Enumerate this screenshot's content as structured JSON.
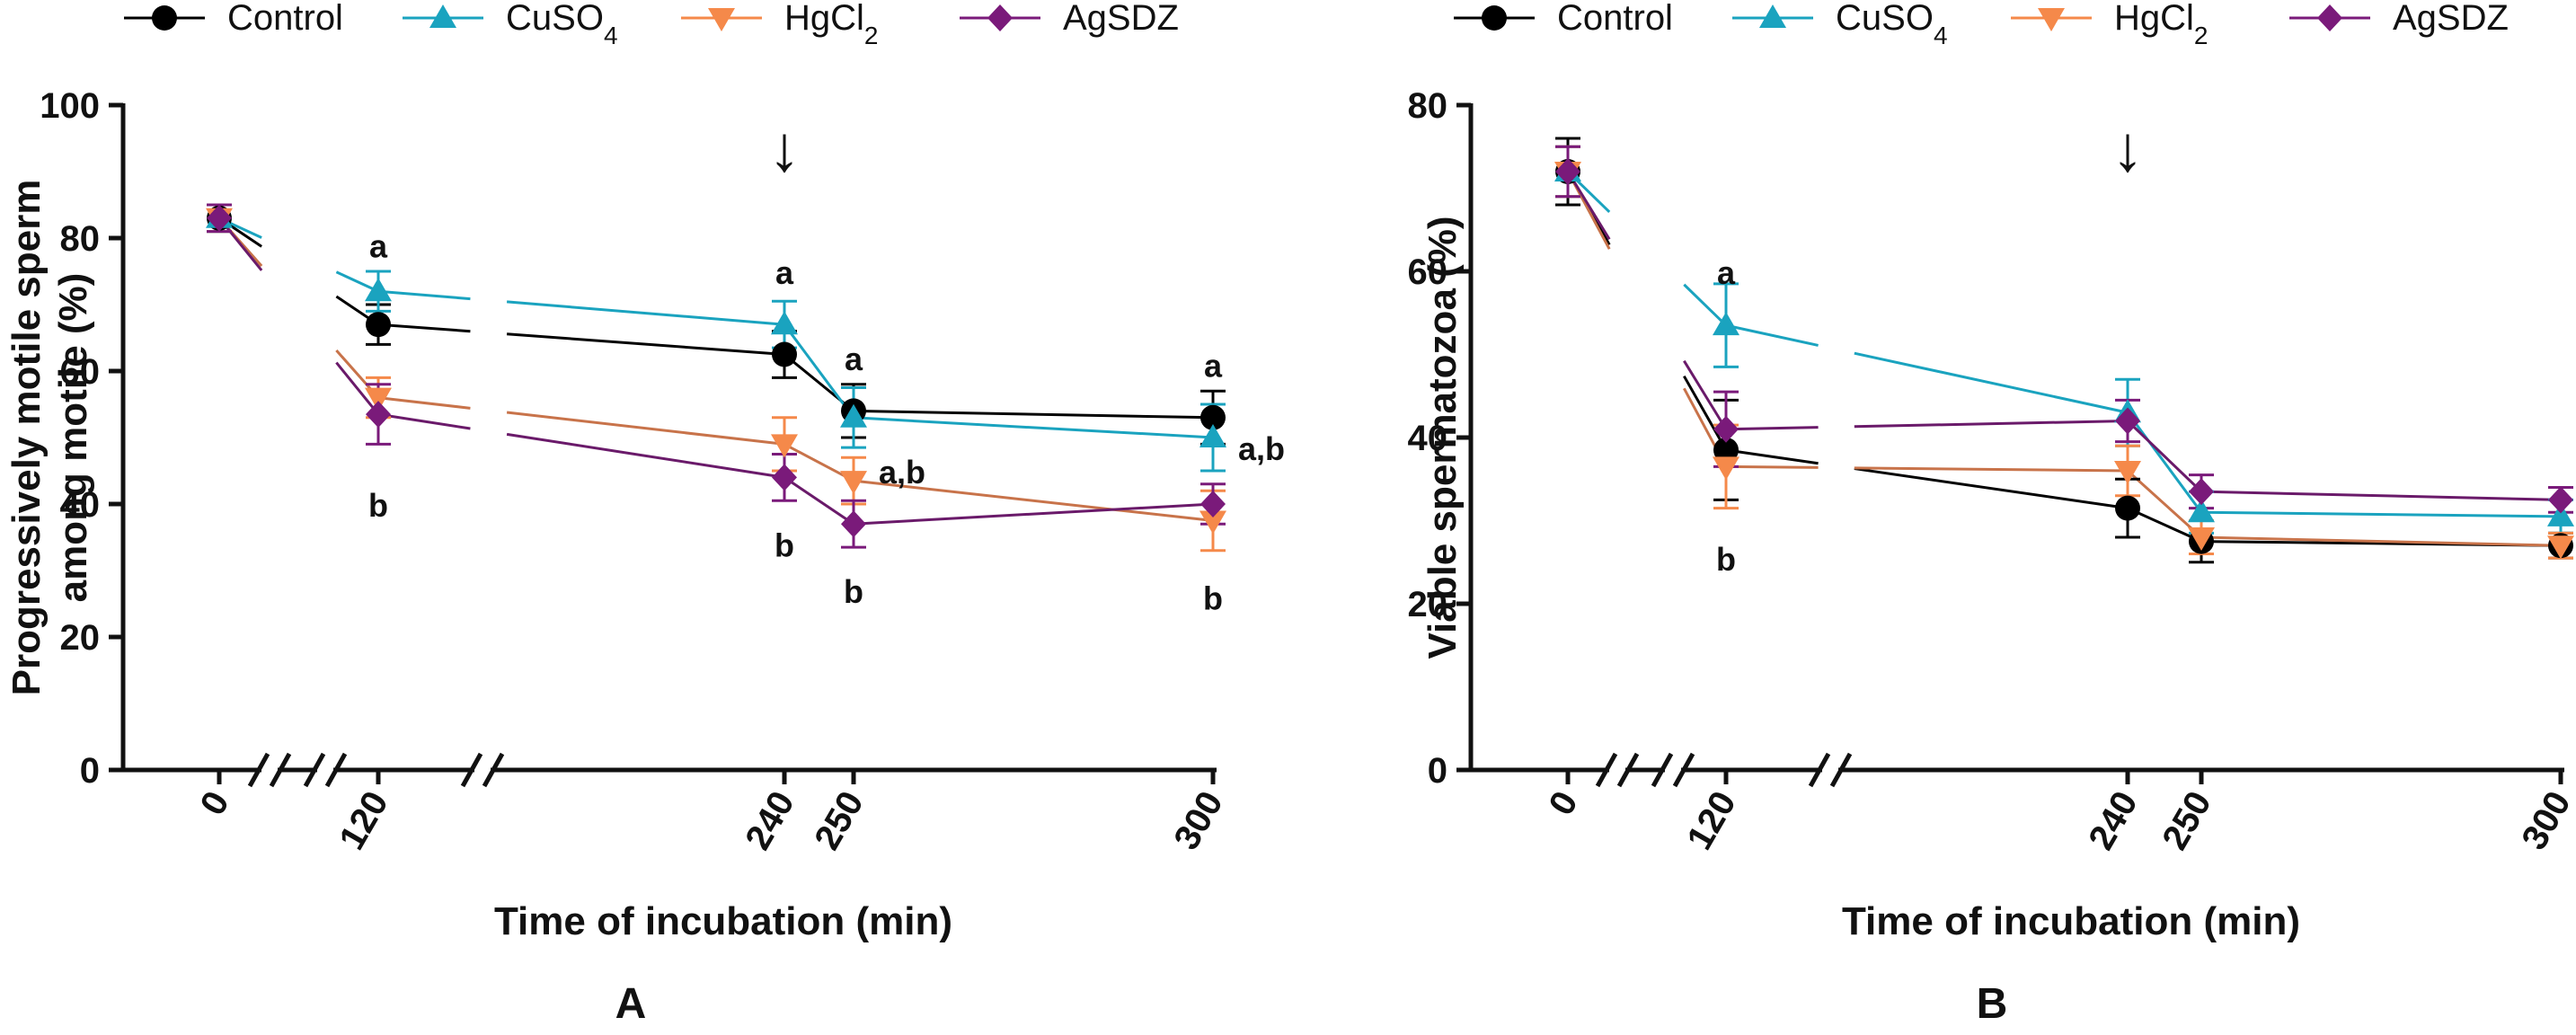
{
  "legend": {
    "items": [
      {
        "name": "Control",
        "label": "Control",
        "sub": "",
        "tail": "",
        "color": "#000000",
        "marker": "circle"
      },
      {
        "name": "CuSO4",
        "label": "CuSO",
        "sub": "4",
        "tail": "",
        "color": "#1aa3bf",
        "marker": "triangle-up"
      },
      {
        "name": "HgCl2",
        "label": "HgCl",
        "sub": "2",
        "tail": "",
        "color": "#f5894a",
        "marker": "triangle-down"
      },
      {
        "name": "AgSDZ",
        "label": "AgSDZ",
        "sub": "",
        "tail": "",
        "color": "#7a1a7a",
        "marker": "diamond"
      }
    ]
  },
  "line_colors": {
    "Control": "#000000",
    "CuSO4": "#1aa3bf",
    "HgCl2": "#c8734a",
    "AgSDZ": "#6a1a6a"
  },
  "chart_data": [
    {
      "type": "line",
      "panel_label": "A",
      "xlabel": "Time of incubation (min)",
      "ylabel_lines": [
        "Progressively motile sperm",
        "among motile (%)"
      ],
      "x": [
        0,
        120,
        240,
        250,
        300
      ],
      "xticks": [
        "0",
        "120",
        "240",
        "250",
        "300"
      ],
      "yticks": [
        "0",
        "20",
        "40",
        "60",
        "80",
        "100"
      ],
      "ylim": [
        0,
        100
      ],
      "arrow_x": 240,
      "arrow_symbol": "↓",
      "series": [
        {
          "name": "Control",
          "values": [
            83,
            67,
            62.5,
            54,
            53
          ],
          "errors": [
            2,
            3,
            3.5,
            4,
            4
          ]
        },
        {
          "name": "CuSO4",
          "values": [
            83,
            72,
            67,
            53,
            50
          ],
          "errors": [
            2,
            3,
            3.5,
            4.5,
            5
          ]
        },
        {
          "name": "HgCl2",
          "values": [
            83,
            56,
            49,
            43.5,
            37.5
          ],
          "errors": [
            2,
            3,
            4,
            3.5,
            4.5
          ]
        },
        {
          "name": "AgSDZ",
          "values": [
            83,
            53.5,
            44,
            37,
            40
          ],
          "errors": [
            2,
            4.5,
            3.5,
            3.5,
            3
          ]
        }
      ],
      "annotations": [
        {
          "text": "a",
          "x": 120,
          "y": 79
        },
        {
          "text": "b",
          "x": 120,
          "y": 40
        },
        {
          "text": "a",
          "x": 240,
          "y": 75
        },
        {
          "text": "b",
          "x": 240,
          "y": 34
        },
        {
          "text": "a",
          "x": 250,
          "y": 62
        },
        {
          "text": "a,b",
          "x": 250,
          "y": 45,
          "side": "right"
        },
        {
          "text": "b",
          "x": 250,
          "y": 27
        },
        {
          "text": "a",
          "x": 300,
          "y": 61
        },
        {
          "text": "a,b",
          "x": 300,
          "y": 48.5,
          "side": "right"
        },
        {
          "text": "b",
          "x": 300,
          "y": 26
        }
      ]
    },
    {
      "type": "line",
      "panel_label": "B",
      "xlabel": "Time of incubation (min)",
      "ylabel_lines": [
        "Viable spermatozoa (%)"
      ],
      "x": [
        0,
        120,
        240,
        250,
        300
      ],
      "xticks": [
        "0",
        "120",
        "240",
        "250",
        "300"
      ],
      "yticks": [
        "0",
        "20",
        "40",
        "60",
        "80"
      ],
      "ylim": [
        0,
        80
      ],
      "arrow_x": 240,
      "arrow_symbol": "↓",
      "series": [
        {
          "name": "Control",
          "values": [
            72,
            38.5,
            31.5,
            27.5,
            27
          ],
          "errors": [
            4,
            6,
            3.5,
            2.5,
            1.5
          ]
        },
        {
          "name": "CuSO4",
          "values": [
            72,
            53.5,
            43,
            31,
            30.5
          ],
          "errors": [
            3,
            5,
            4,
            2.5,
            2
          ]
        },
        {
          "name": "HgCl2",
          "values": [
            72,
            36.5,
            36,
            28,
            27
          ],
          "errors": [
            3,
            5,
            3,
            2,
            1.5
          ]
        },
        {
          "name": "AgSDZ",
          "values": [
            72,
            41,
            42,
            33.5,
            32.5
          ],
          "errors": [
            3,
            4.5,
            2.5,
            2,
            1.5
          ]
        }
      ],
      "annotations": [
        {
          "text": "a",
          "x": 120,
          "y": 60
        },
        {
          "text": "b",
          "x": 120,
          "y": 25.5
        }
      ]
    }
  ]
}
